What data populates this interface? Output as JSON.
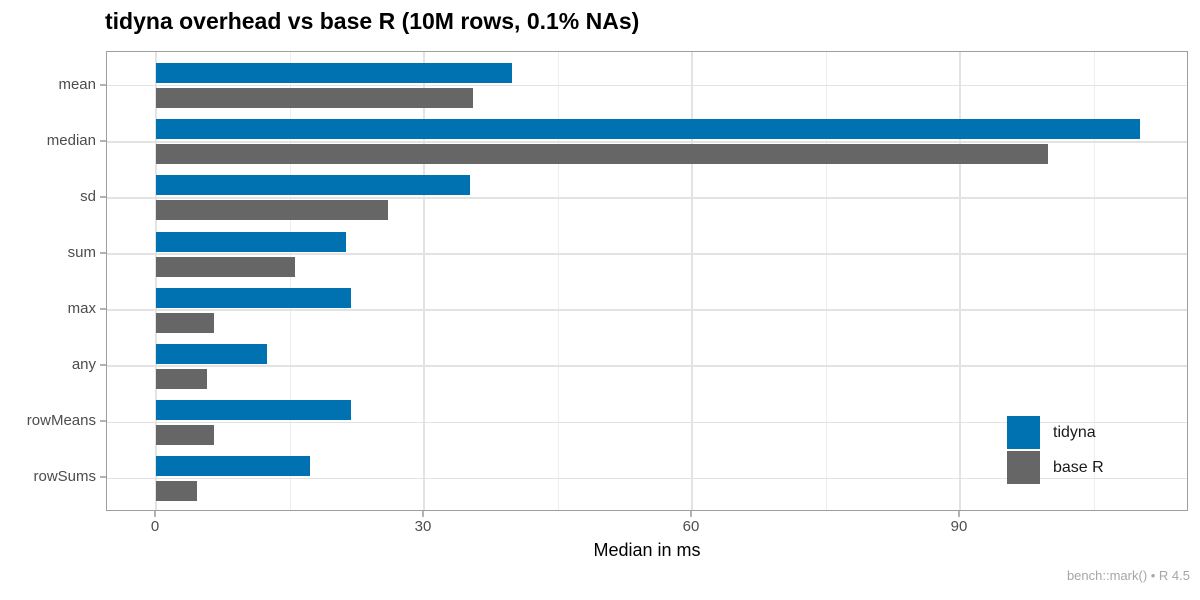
{
  "title": "tidyna overhead vs base R (10M rows, 0.1% NAs)",
  "caption": "bench::mark() • R 4.5",
  "chart_data": {
    "type": "bar",
    "orientation": "horizontal",
    "title": "tidyna overhead vs base R (10M rows, 0.1% NAs)",
    "categories": [
      "mean",
      "median",
      "sd",
      "sum",
      "max",
      "any",
      "rowMeans",
      "rowSums"
    ],
    "series": [
      {
        "name": "tidyna",
        "color": "#0072B2",
        "values": [
          39.9,
          110.2,
          35.2,
          21.3,
          21.8,
          12.4,
          21.8,
          17.2
        ]
      },
      {
        "name": "base R",
        "color": "#666666",
        "values": [
          35.5,
          99.9,
          26.0,
          15.6,
          6.5,
          5.7,
          6.5,
          4.6
        ]
      }
    ],
    "xlabel": "Median in ms",
    "ylabel": "",
    "xticks": [
      0,
      30,
      60,
      90
    ],
    "xminor_ticks": [
      15,
      45,
      75,
      105
    ],
    "xlim": [
      -5.5,
      115.6
    ],
    "grid": true,
    "legend_position": "inside-right",
    "caption": "bench::mark() • R 4.5"
  },
  "colors": {
    "tidyna_bar": "#0072B2",
    "base_r_bar": "#666666",
    "panel_border": "#9e9e9e",
    "grid_major": "#e3e3e3",
    "grid_minor": "#eeeeee",
    "axis_text": "#4d4d4d",
    "caption_text": "#a6a6a6"
  }
}
